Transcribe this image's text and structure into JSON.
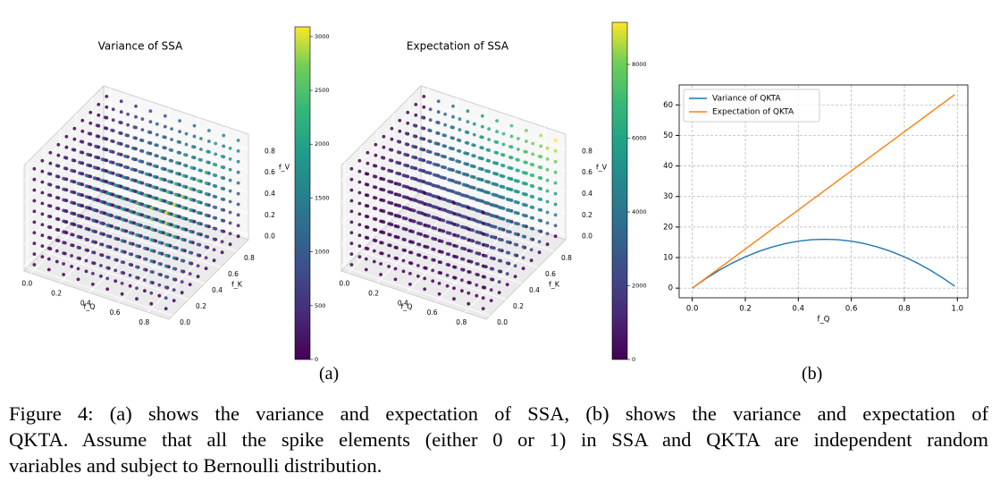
{
  "figure": {
    "panel_a_label": "(a)",
    "panel_b_label": "(b)",
    "caption": [
      "Figure 4: (a) shows the variance and expectation of SSA, (b) shows the variance and expectation of",
      "QKTA. Assume that all the spike elements (either 0 or 1) in SSA and QKTA are independent random",
      "variables and subject to Bernoulli distribution."
    ]
  },
  "chart_data": [
    {
      "type": "scatter3d",
      "title": "Variance of SSA",
      "xlabel": "f_Q",
      "ylabel": "f_K",
      "zlabel": "f_V",
      "points_at": [
        0,
        0.1,
        0.2,
        0.3,
        0.4,
        0.5,
        0.6,
        0.7,
        0.8,
        0.9
      ],
      "xlim": [
        -0.045,
        0.945
      ],
      "ylim": [
        -0.045,
        0.945
      ],
      "zlim": [
        -0.045,
        0.945
      ],
      "xticks": [
        {
          "value": 0,
          "label": "0.0"
        },
        {
          "value": 0.2,
          "label": "0.2"
        },
        {
          "value": 0.4,
          "label": "0.4"
        },
        {
          "value": 0.6,
          "label": "0.6"
        },
        {
          "value": 0.8,
          "label": "0.8"
        }
      ],
      "yticks": [
        {
          "value": 0,
          "label": "0.0"
        },
        {
          "value": 0.2,
          "label": "0.2"
        },
        {
          "value": 0.4,
          "label": "0.4"
        },
        {
          "value": 0.6,
          "label": "0.6"
        },
        {
          "value": 0.8,
          "label": "0.8"
        }
      ],
      "zticks": [
        {
          "value": 0,
          "label": "0.0"
        },
        {
          "value": 0.2,
          "label": "0.2"
        },
        {
          "value": 0.4,
          "label": "0.4"
        },
        {
          "value": 0.6,
          "label": "0.6"
        },
        {
          "value": 0.8,
          "label": "0.8"
        }
      ],
      "colormap": "viridis",
      "clim": [
        0,
        3090
      ],
      "cticks": [
        0,
        500,
        1000,
        1500,
        2000,
        2500,
        3000
      ]
    },
    {
      "type": "scatter3d",
      "title": "Expectation of SSA",
      "xlabel": "f_Q",
      "ylabel": "f_K",
      "zlabel": "f_V",
      "points_at": [
        0,
        0.1,
        0.2,
        0.3,
        0.4,
        0.5,
        0.6,
        0.7,
        0.8,
        0.9
      ],
      "xlim": [
        -0.045,
        0.945
      ],
      "ylim": [
        -0.045,
        0.945
      ],
      "zlim": [
        -0.045,
        0.945
      ],
      "xticks": [
        {
          "value": 0,
          "label": "0.0"
        },
        {
          "value": 0.2,
          "label": "0.2"
        },
        {
          "value": 0.4,
          "label": "0.4"
        },
        {
          "value": 0.6,
          "label": "0.6"
        },
        {
          "value": 0.8,
          "label": "0.8"
        }
      ],
      "yticks": [
        {
          "value": 0,
          "label": "0.0"
        },
        {
          "value": 0.2,
          "label": "0.2"
        },
        {
          "value": 0.4,
          "label": "0.4"
        },
        {
          "value": 0.6,
          "label": "0.6"
        },
        {
          "value": 0.8,
          "label": "0.8"
        }
      ],
      "zticks": [
        {
          "value": 0,
          "label": "0.0"
        },
        {
          "value": 0.2,
          "label": "0.2"
        },
        {
          "value": 0.4,
          "label": "0.4"
        },
        {
          "value": 0.6,
          "label": "0.6"
        },
        {
          "value": 0.8,
          "label": "0.8"
        }
      ],
      "colormap": "viridis",
      "clim": [
        0,
        9140
      ],
      "cticks": [
        0,
        2000,
        4000,
        6000,
        8000
      ]
    },
    {
      "type": "line",
      "xlabel": "f_Q",
      "x": [
        0,
        0.05,
        0.1,
        0.15,
        0.2,
        0.25,
        0.3,
        0.35,
        0.4,
        0.45,
        0.5,
        0.55,
        0.6,
        0.65,
        0.7,
        0.75,
        0.8,
        0.85,
        0.9,
        0.95,
        0.99
      ],
      "series": [
        {
          "name": "Variance of QKTA",
          "color": "#1f77b4",
          "values": [
            0,
            3.04,
            5.76,
            8.16,
            10.24,
            12,
            13.44,
            14.56,
            15.36,
            15.84,
            16,
            15.84,
            15.36,
            14.56,
            13.44,
            12,
            10.24,
            8.16,
            5.76,
            3.04,
            0.63
          ]
        },
        {
          "name": "Expectation of QKTA",
          "color": "#ff7f0e",
          "values": [
            0,
            3.2,
            6.4,
            9.6,
            12.8,
            16,
            19.2,
            22.4,
            25.6,
            28.8,
            32,
            35.2,
            38.4,
            41.6,
            44.8,
            48,
            51.2,
            54.4,
            57.6,
            60.8,
            63.36
          ]
        }
      ],
      "xlim": [
        -0.0495,
        1.0395
      ],
      "ylim": [
        -3.17,
        66.53
      ],
      "xticks": [
        {
          "value": 0,
          "label": "0.0"
        },
        {
          "value": 0.2,
          "label": "0.2"
        },
        {
          "value": 0.4,
          "label": "0.4"
        },
        {
          "value": 0.6,
          "label": "0.6"
        },
        {
          "value": 0.8,
          "label": "0.8"
        },
        {
          "value": 1,
          "label": "1.0"
        }
      ],
      "yticks": [
        0,
        10,
        20,
        30,
        40,
        50,
        60
      ],
      "grid": true,
      "legend": "upper left"
    }
  ]
}
